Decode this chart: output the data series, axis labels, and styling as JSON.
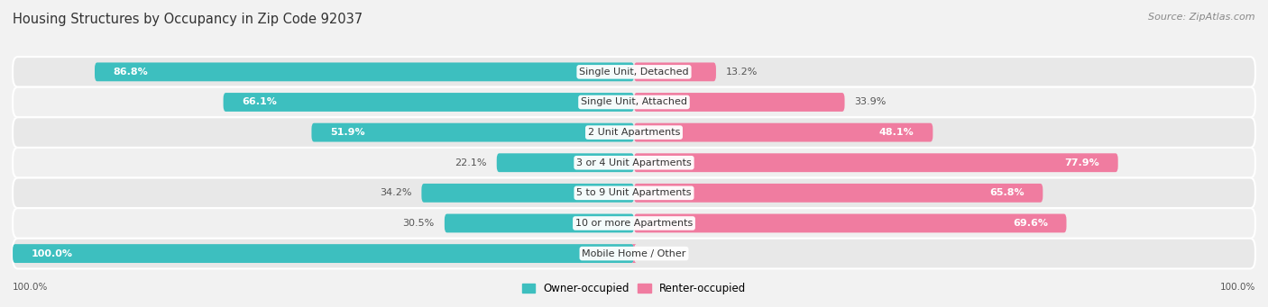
{
  "title": "Housing Structures by Occupancy in Zip Code 92037",
  "source": "Source: ZipAtlas.com",
  "categories": [
    "Single Unit, Detached",
    "Single Unit, Attached",
    "2 Unit Apartments",
    "3 or 4 Unit Apartments",
    "5 to 9 Unit Apartments",
    "10 or more Apartments",
    "Mobile Home / Other"
  ],
  "owner_pct": [
    86.8,
    66.1,
    51.9,
    22.1,
    34.2,
    30.5,
    100.0
  ],
  "renter_pct": [
    13.2,
    33.9,
    48.1,
    77.9,
    65.8,
    69.6,
    0.0
  ],
  "owner_color": "#3DBFBF",
  "renter_color": "#F07CA0",
  "bg_color": "#f2f2f2",
  "row_colors": [
    "#e8e8e8",
    "#f0f0f0"
  ],
  "bar_height": 0.62,
  "title_fontsize": 10.5,
  "pct_fontsize": 8,
  "cat_fontsize": 8,
  "legend_fontsize": 8.5,
  "source_fontsize": 8,
  "axis_label_fontsize": 7.5,
  "legend_label": [
    "Owner-occupied",
    "Renter-occupied"
  ],
  "axis_bottom_labels": [
    "100.0%",
    "100.0%"
  ]
}
